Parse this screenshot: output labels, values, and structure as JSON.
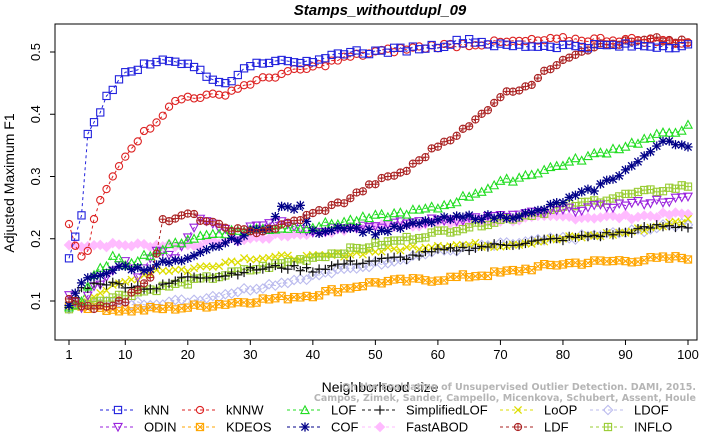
{
  "chart_data": {
    "type": "line",
    "title": "Stamps_withoutdupl_09",
    "xlabel": "Neighborhood size",
    "ylabel": "Adjusted Maximum F1",
    "xlim": [
      1,
      100
    ],
    "ylim": [
      0.08,
      0.55
    ],
    "xticks": [
      1,
      10,
      20,
      30,
      40,
      50,
      60,
      70,
      80,
      90,
      100
    ],
    "yticks": [
      0.1,
      0.2,
      0.3,
      0.4,
      0.5
    ],
    "ytick_labels": [
      "0.1",
      "0.2",
      "0.3",
      "0.4",
      "0.5"
    ],
    "grid": false,
    "legend_position": "bottom",
    "watermark": [
      "Campos, Zimek, Sander, Campello, Micenkova, Schubert, Assent, Houle",
      "On the Evaluation of Unsupervised Outlier Detection. DAMI, 2015."
    ],
    "series": [
      {
        "name": "kNN",
        "color": "#2222dd",
        "marker": "square",
        "anchors": [
          [
            1,
            0.17
          ],
          [
            2,
            0.2
          ],
          [
            3,
            0.24
          ],
          [
            4,
            0.37
          ],
          [
            5,
            0.39
          ],
          [
            6,
            0.4
          ],
          [
            7,
            0.43
          ],
          [
            8,
            0.44
          ],
          [
            9,
            0.46
          ],
          [
            10,
            0.47
          ],
          [
            14,
            0.48
          ],
          [
            16,
            0.49
          ],
          [
            20,
            0.48
          ],
          [
            22,
            0.47
          ],
          [
            25,
            0.45
          ],
          [
            28,
            0.46
          ],
          [
            30,
            0.48
          ],
          [
            35,
            0.49
          ],
          [
            40,
            0.48
          ],
          [
            45,
            0.5
          ],
          [
            50,
            0.5
          ],
          [
            60,
            0.51
          ],
          [
            65,
            0.52
          ],
          [
            70,
            0.51
          ],
          [
            80,
            0.51
          ],
          [
            90,
            0.51
          ],
          [
            100,
            0.51
          ]
        ]
      },
      {
        "name": "kNNW",
        "color": "#dd2222",
        "marker": "circle",
        "anchors": [
          [
            1,
            0.22
          ],
          [
            2,
            0.19
          ],
          [
            3,
            0.17
          ],
          [
            4,
            0.18
          ],
          [
            5,
            0.23
          ],
          [
            6,
            0.26
          ],
          [
            7,
            0.28
          ],
          [
            8,
            0.3
          ],
          [
            9,
            0.32
          ],
          [
            10,
            0.335
          ],
          [
            12,
            0.36
          ],
          [
            14,
            0.38
          ],
          [
            16,
            0.4
          ],
          [
            18,
            0.42
          ],
          [
            20,
            0.428
          ],
          [
            25,
            0.43
          ],
          [
            30,
            0.45
          ],
          [
            35,
            0.465
          ],
          [
            40,
            0.475
          ],
          [
            45,
            0.49
          ],
          [
            50,
            0.5
          ],
          [
            60,
            0.51
          ],
          [
            70,
            0.515
          ],
          [
            80,
            0.52
          ],
          [
            90,
            0.52
          ],
          [
            100,
            0.515
          ]
        ]
      },
      {
        "name": "LOF",
        "color": "#22dd22",
        "marker": "triangle",
        "anchors": [
          [
            1,
            0.09
          ],
          [
            3,
            0.1
          ],
          [
            5,
            0.14
          ],
          [
            8,
            0.17
          ],
          [
            10,
            0.16
          ],
          [
            15,
            0.18
          ],
          [
            20,
            0.2
          ],
          [
            25,
            0.21
          ],
          [
            30,
            0.215
          ],
          [
            40,
            0.22
          ],
          [
            50,
            0.235
          ],
          [
            60,
            0.25
          ],
          [
            70,
            0.29
          ],
          [
            80,
            0.32
          ],
          [
            90,
            0.35
          ],
          [
            95,
            0.365
          ],
          [
            100,
            0.38
          ]
        ]
      },
      {
        "name": "SimplifiedLOF",
        "color": "#111111",
        "marker": "plus",
        "anchors": [
          [
            1,
            0.09
          ],
          [
            3,
            0.12
          ],
          [
            6,
            0.13
          ],
          [
            10,
            0.125
          ],
          [
            15,
            0.12
          ],
          [
            20,
            0.14
          ],
          [
            25,
            0.14
          ],
          [
            30,
            0.15
          ],
          [
            35,
            0.155
          ],
          [
            40,
            0.15
          ],
          [
            45,
            0.16
          ],
          [
            50,
            0.165
          ],
          [
            55,
            0.17
          ],
          [
            60,
            0.18
          ],
          [
            65,
            0.185
          ],
          [
            70,
            0.19
          ],
          [
            75,
            0.195
          ],
          [
            80,
            0.2
          ],
          [
            85,
            0.205
          ],
          [
            90,
            0.21
          ],
          [
            95,
            0.22
          ],
          [
            100,
            0.22
          ]
        ]
      },
      {
        "name": "LoOP",
        "color": "#dddd00",
        "marker": "x",
        "anchors": [
          [
            1,
            0.09
          ],
          [
            5,
            0.11
          ],
          [
            10,
            0.13
          ],
          [
            15,
            0.15
          ],
          [
            20,
            0.15
          ],
          [
            25,
            0.16
          ],
          [
            30,
            0.17
          ],
          [
            40,
            0.17
          ],
          [
            50,
            0.18
          ],
          [
            60,
            0.19
          ],
          [
            70,
            0.19
          ],
          [
            80,
            0.2
          ],
          [
            90,
            0.21
          ],
          [
            100,
            0.23
          ]
        ]
      },
      {
        "name": "LDOF",
        "color": "#bbbbee",
        "marker": "diamond",
        "anchors": [
          [
            1,
            0.09
          ],
          [
            5,
            0.1
          ],
          [
            10,
            0.095
          ],
          [
            20,
            0.1
          ],
          [
            30,
            0.12
          ],
          [
            40,
            0.14
          ],
          [
            50,
            0.16
          ],
          [
            60,
            0.18
          ],
          [
            70,
            0.19
          ],
          [
            80,
            0.2
          ],
          [
            90,
            0.21
          ],
          [
            100,
            0.225
          ]
        ]
      },
      {
        "name": "ODIN",
        "color": "#9922dd",
        "marker": "triangle-down",
        "anchors": [
          [
            1,
            0.11
          ],
          [
            3,
            0.09
          ],
          [
            5,
            0.12
          ],
          [
            8,
            0.15
          ],
          [
            10,
            0.16
          ],
          [
            12,
            0.14
          ],
          [
            15,
            0.18
          ],
          [
            18,
            0.17
          ],
          [
            20,
            0.2
          ],
          [
            22,
            0.23
          ],
          [
            25,
            0.22
          ],
          [
            28,
            0.2
          ],
          [
            30,
            0.22
          ],
          [
            35,
            0.23
          ],
          [
            40,
            0.21
          ],
          [
            45,
            0.22
          ],
          [
            50,
            0.22
          ],
          [
            60,
            0.23
          ],
          [
            70,
            0.235
          ],
          [
            80,
            0.245
          ],
          [
            90,
            0.255
          ],
          [
            100,
            0.265
          ]
        ]
      },
      {
        "name": "KDEOS",
        "color": "#ffa500",
        "marker": "square-x",
        "anchors": [
          [
            1,
            0.095
          ],
          [
            5,
            0.09
          ],
          [
            10,
            0.085
          ],
          [
            20,
            0.09
          ],
          [
            30,
            0.1
          ],
          [
            40,
            0.11
          ],
          [
            50,
            0.13
          ],
          [
            60,
            0.135
          ],
          [
            70,
            0.145
          ],
          [
            80,
            0.16
          ],
          [
            90,
            0.165
          ],
          [
            100,
            0.17
          ]
        ]
      },
      {
        "name": "COF",
        "color": "#000088",
        "marker": "asterisk",
        "anchors": [
          [
            1,
            0.09
          ],
          [
            3,
            0.13
          ],
          [
            5,
            0.14
          ],
          [
            8,
            0.15
          ],
          [
            10,
            0.155
          ],
          [
            13,
            0.15
          ],
          [
            15,
            0.16
          ],
          [
            20,
            0.165
          ],
          [
            25,
            0.19
          ],
          [
            28,
            0.2
          ],
          [
            30,
            0.21
          ],
          [
            33,
            0.22
          ],
          [
            35,
            0.25
          ],
          [
            38,
            0.25
          ],
          [
            40,
            0.21
          ],
          [
            45,
            0.22
          ],
          [
            50,
            0.21
          ],
          [
            55,
            0.22
          ],
          [
            60,
            0.23
          ],
          [
            65,
            0.235
          ],
          [
            70,
            0.235
          ],
          [
            75,
            0.24
          ],
          [
            80,
            0.26
          ],
          [
            85,
            0.28
          ],
          [
            90,
            0.31
          ],
          [
            93,
            0.33
          ],
          [
            96,
            0.36
          ],
          [
            98,
            0.355
          ],
          [
            100,
            0.345
          ]
        ]
      },
      {
        "name": "FastABOD",
        "color": "#ffbbff",
        "marker": "diamond-filled",
        "anchors": [
          [
            1,
            0.19
          ],
          [
            5,
            0.19
          ],
          [
            10,
            0.19
          ],
          [
            15,
            0.19
          ],
          [
            20,
            0.19
          ],
          [
            30,
            0.2
          ],
          [
            40,
            0.21
          ],
          [
            50,
            0.22
          ],
          [
            60,
            0.225
          ],
          [
            70,
            0.23
          ],
          [
            80,
            0.235
          ],
          [
            90,
            0.235
          ],
          [
            100,
            0.24
          ]
        ]
      },
      {
        "name": "LDF",
        "color": "#aa2222",
        "marker": "circle-plus",
        "anchors": [
          [
            1,
            0.1
          ],
          [
            5,
            0.09
          ],
          [
            10,
            0.1
          ],
          [
            14,
            0.14
          ],
          [
            15,
            0.18
          ],
          [
            16,
            0.23
          ],
          [
            18,
            0.23
          ],
          [
            20,
            0.24
          ],
          [
            25,
            0.22
          ],
          [
            30,
            0.21
          ],
          [
            35,
            0.22
          ],
          [
            40,
            0.24
          ],
          [
            45,
            0.26
          ],
          [
            50,
            0.29
          ],
          [
            55,
            0.31
          ],
          [
            60,
            0.35
          ],
          [
            65,
            0.38
          ],
          [
            70,
            0.43
          ],
          [
            75,
            0.45
          ],
          [
            80,
            0.49
          ],
          [
            85,
            0.51
          ],
          [
            90,
            0.515
          ],
          [
            95,
            0.52
          ],
          [
            100,
            0.515
          ]
        ]
      },
      {
        "name": "INFLO",
        "color": "#99cc33",
        "marker": "square-plus",
        "anchors": [
          [
            1,
            0.09
          ],
          [
            5,
            0.1
          ],
          [
            10,
            0.11
          ],
          [
            20,
            0.13
          ],
          [
            30,
            0.15
          ],
          [
            40,
            0.17
          ],
          [
            50,
            0.19
          ],
          [
            60,
            0.21
          ],
          [
            70,
            0.23
          ],
          [
            80,
            0.25
          ],
          [
            90,
            0.27
          ],
          [
            100,
            0.285
          ]
        ]
      }
    ]
  }
}
